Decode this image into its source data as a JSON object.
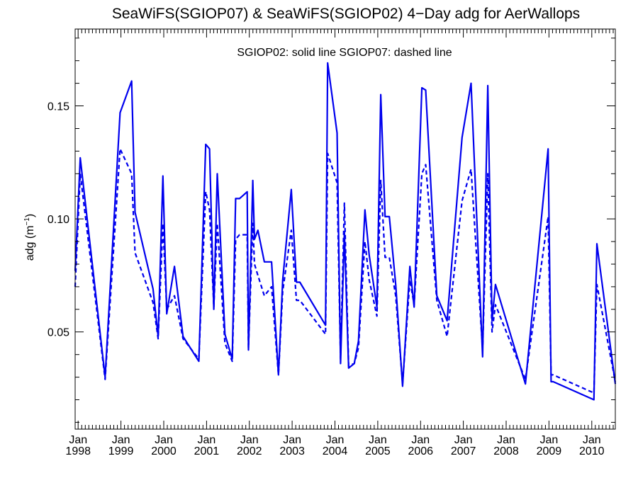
{
  "chart_data": {
    "type": "line",
    "title": "SeaWiFS(SGIOP07) & SeaWiFS(SGIOP02) 4−Day adg for AerWallops",
    "annotation": "SGIOP02: solid line   SGIOP07: dashed line",
    "ylabel": {
      "base": "adg (m",
      "exponent": "−1",
      "close": ")"
    },
    "xlim": [
      1997.93,
      2010.55
    ],
    "ylim": [
      0.007,
      0.184
    ],
    "y_ticks": [
      0.05,
      0.1,
      0.15
    ],
    "y_tick_labels": [
      "0.05",
      "0.10",
      "0.15"
    ],
    "x_ticks": [
      {
        "value": 1998,
        "month": "Jan",
        "year": "1998"
      },
      {
        "value": 1999,
        "month": "Jan",
        "year": "1999"
      },
      {
        "value": 2000,
        "month": "Jan",
        "year": "2000"
      },
      {
        "value": 2001,
        "month": "Jan",
        "year": "2001"
      },
      {
        "value": 2002,
        "month": "Jan",
        "year": "2002"
      },
      {
        "value": 2003,
        "month": "Jan",
        "year": "2003"
      },
      {
        "value": 2004,
        "month": "Jan",
        "year": "2004"
      },
      {
        "value": 2005,
        "month": "Jan",
        "year": "2005"
      },
      {
        "value": 2006,
        "month": "Jan",
        "year": "2006"
      },
      {
        "value": 2007,
        "month": "Jan",
        "year": "2007"
      },
      {
        "value": 2008,
        "month": "Jan",
        "year": "2008"
      },
      {
        "value": 2009,
        "month": "Jan",
        "year": "2009"
      },
      {
        "value": 2010,
        "month": "Jan",
        "year": "2010"
      }
    ],
    "line_color": "#0000ee",
    "series": [
      {
        "style": "solid",
        "x": [
          1997.93,
          1998.05,
          1998.63,
          1998.98,
          1999.25,
          1999.33,
          1999.75,
          1999.87,
          1999.98,
          2000.07,
          2000.25,
          2000.45,
          2000.82,
          2000.98,
          2001.07,
          2001.17,
          2001.25,
          2001.43,
          2001.6,
          2001.68,
          2001.77,
          2001.95,
          2001.98,
          2002.08,
          2002.12,
          2002.2,
          2002.35,
          2002.52,
          2002.68,
          2002.78,
          2002.98,
          2003.1,
          2003.18,
          2003.78,
          2003.83,
          2004.05,
          2004.13,
          2004.22,
          2004.32,
          2004.45,
          2004.55,
          2004.7,
          2004.8,
          2004.98,
          2005.07,
          2005.17,
          2005.27,
          2005.42,
          2005.58,
          2005.75,
          2005.85,
          2006.03,
          2006.12,
          2006.38,
          2006.62,
          2006.97,
          2007.18,
          2007.45,
          2007.57,
          2007.67,
          2007.75,
          2008.45,
          2008.98,
          2009.05,
          2009.1,
          2010.05,
          2010.12,
          2010.55
        ],
        "y": [
          0.077,
          0.127,
          0.03,
          0.147,
          0.161,
          0.103,
          0.069,
          0.048,
          0.119,
          0.058,
          0.079,
          0.048,
          0.037,
          0.133,
          0.131,
          0.06,
          0.12,
          0.049,
          0.038,
          0.109,
          0.109,
          0.112,
          0.042,
          0.117,
          0.091,
          0.095,
          0.081,
          0.081,
          0.031,
          0.073,
          0.113,
          0.072,
          0.072,
          0.053,
          0.169,
          0.138,
          0.036,
          0.094,
          0.034,
          0.036,
          0.046,
          0.104,
          0.084,
          0.061,
          0.155,
          0.101,
          0.101,
          0.071,
          0.026,
          0.079,
          0.061,
          0.158,
          0.157,
          0.066,
          0.055,
          0.136,
          0.16,
          0.039,
          0.159,
          0.055,
          0.071,
          0.027,
          0.131,
          0.028,
          0.028,
          0.02,
          0.089,
          0.027
        ]
      },
      {
        "style": "dashed",
        "x": [
          1997.93,
          1998.05,
          1998.63,
          1998.98,
          1999.25,
          1999.33,
          1999.75,
          1999.87,
          1999.98,
          2000.07,
          2000.25,
          2000.45,
          2000.82,
          2000.98,
          2001.07,
          2001.17,
          2001.25,
          2001.43,
          2001.6,
          2001.68,
          2001.77,
          2001.95,
          2001.98,
          2002.08,
          2002.12,
          2002.2,
          2002.35,
          2002.52,
          2002.68,
          2002.78,
          2002.98,
          2003.1,
          2003.18,
          2003.78,
          2003.83,
          2004.05,
          2004.13,
          2004.22,
          2004.32,
          2004.45,
          2004.55,
          2004.7,
          2004.8,
          2004.98,
          2005.07,
          2005.17,
          2005.27,
          2005.42,
          2005.58,
          2005.75,
          2005.85,
          2006.03,
          2006.12,
          2006.38,
          2006.62,
          2006.97,
          2007.18,
          2007.45,
          2007.57,
          2007.67,
          2007.75,
          2008.45,
          2008.98,
          2009.05,
          2009.1,
          2010.05,
          2010.12,
          2010.55
        ],
        "y": [
          0.07,
          0.12,
          0.029,
          0.131,
          0.12,
          0.085,
          0.063,
          0.047,
          0.098,
          0.06,
          0.066,
          0.047,
          0.038,
          0.112,
          0.104,
          0.061,
          0.098,
          0.045,
          0.037,
          0.091,
          0.093,
          0.093,
          0.043,
          0.098,
          0.08,
          0.075,
          0.066,
          0.07,
          0.031,
          0.068,
          0.095,
          0.064,
          0.064,
          0.049,
          0.129,
          0.116,
          0.038,
          0.107,
          0.035,
          0.036,
          0.043,
          0.09,
          0.073,
          0.057,
          0.117,
          0.083,
          0.083,
          0.066,
          0.027,
          0.073,
          0.062,
          0.12,
          0.124,
          0.064,
          0.048,
          0.108,
          0.122,
          0.042,
          0.12,
          0.05,
          0.062,
          0.029,
          0.101,
          0.031,
          0.031,
          0.023,
          0.071,
          0.028
        ]
      }
    ]
  }
}
